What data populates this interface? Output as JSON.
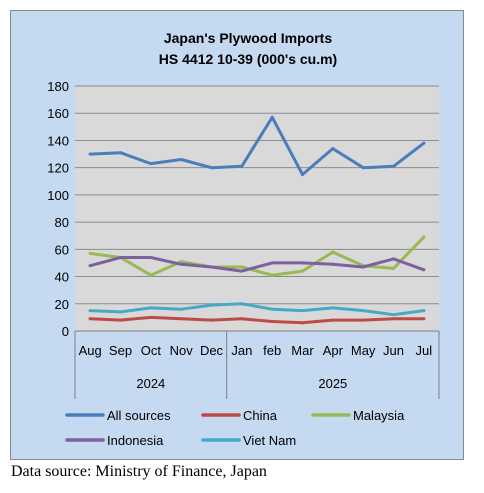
{
  "chart_data": {
    "type": "line",
    "title": "Japan's Plywood Imports",
    "subtitle": "HS 4412 10-39  (000's cu.m)",
    "categories": [
      "Aug",
      "Sep",
      "Oct",
      "Nov",
      "Dec",
      "Jan",
      "feb",
      "Mar",
      "Apr",
      "May",
      "Jun",
      "Jul"
    ],
    "groups": [
      {
        "label": "2024",
        "start": 0,
        "end": 4
      },
      {
        "label": "2025",
        "start": 5,
        "end": 11
      }
    ],
    "ylim": [
      0,
      180
    ],
    "yticks": [
      0,
      20,
      40,
      60,
      80,
      100,
      120,
      140,
      160,
      180
    ],
    "grid": true,
    "legend_position": "bottom",
    "series": [
      {
        "name": "All sources",
        "color": "#4a7ebb",
        "values": [
          130,
          131,
          123,
          126,
          120,
          121,
          157,
          115,
          134,
          120,
          121,
          138
        ]
      },
      {
        "name": "China",
        "color": "#be4b48",
        "values": [
          9,
          8,
          10,
          9,
          8,
          9,
          7,
          6,
          8,
          8,
          9,
          9
        ]
      },
      {
        "name": "Malaysia",
        "color": "#98b954",
        "values": [
          57,
          54,
          41,
          51,
          47,
          47,
          41,
          44,
          58,
          48,
          46,
          69
        ]
      },
      {
        "name": "Indonesia",
        "color": "#7d60a0",
        "values": [
          48,
          54,
          54,
          49,
          47,
          44,
          50,
          50,
          49,
          47,
          53,
          45
        ]
      },
      {
        "name": "Viet Nam",
        "color": "#46aac5",
        "values": [
          15,
          14,
          17,
          16,
          19,
          20,
          16,
          15,
          17,
          15,
          12,
          15
        ]
      }
    ]
  },
  "source_note": "Data source: Ministry of Finance, Japan"
}
